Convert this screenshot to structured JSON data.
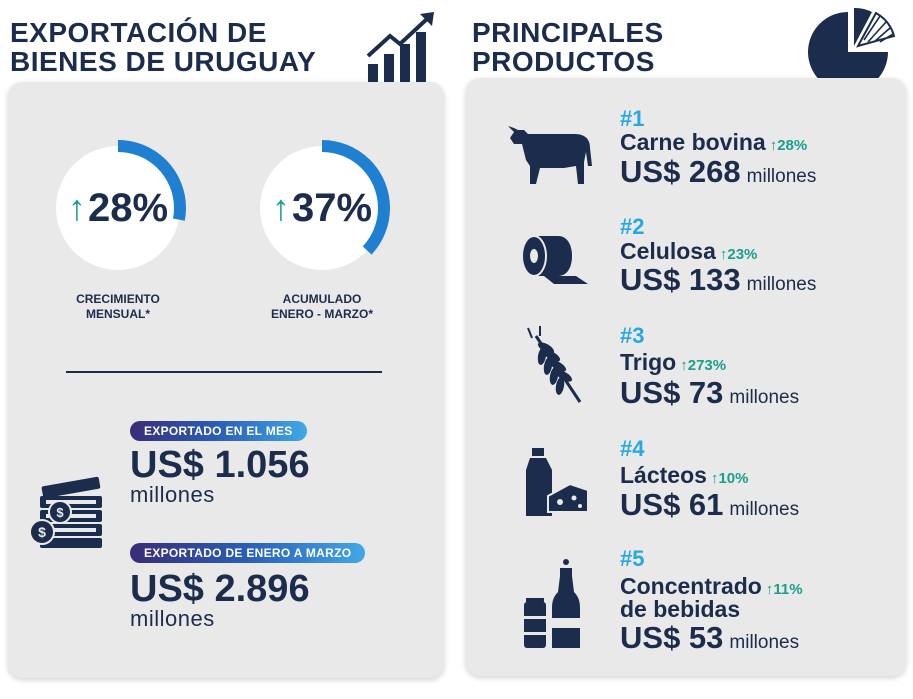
{
  "left": {
    "title_line1": "EXPORTACIÓN DE",
    "title_line2": "BIENES DE URUGUAY",
    "growth_monthly": {
      "arrow": "↑",
      "value": "28%",
      "fraction": 0.28,
      "caption_line1": "CRECIMIENTO",
      "caption_line2": "MENSUAL*"
    },
    "growth_accum": {
      "arrow": "↑",
      "value": "37%",
      "fraction": 0.37,
      "caption_line1": "ACUMULADO",
      "caption_line2": "ENERO - MARZO*"
    },
    "month": {
      "label": "EXPORTADO EN EL MES",
      "value": "US$ 1.056",
      "unit": "millones"
    },
    "q1": {
      "label": "EXPORTADO DE ENERO A MARZO",
      "value": "US$ 2.896",
      "unit": "millones"
    }
  },
  "right": {
    "title_line1": "PRINCIPALES",
    "title_line2": "PRODUCTOS",
    "products": [
      {
        "rank": "#1",
        "name": "Carne bovina",
        "change": "↑28%",
        "value": "US$ 268",
        "unit": "millones",
        "icon": "cow-icon"
      },
      {
        "rank": "#2",
        "name": "Celulosa",
        "change": "↑23%",
        "value": "US$ 133",
        "unit": "millones",
        "icon": "paper-roll-icon"
      },
      {
        "rank": "#3",
        "name": "Trigo",
        "change": "↑273%",
        "value": "US$ 73",
        "unit": "millones",
        "icon": "wheat-icon"
      },
      {
        "rank": "#4",
        "name": "Lácteos",
        "change": "↑10%",
        "value": "US$ 61",
        "unit": "millones",
        "icon": "dairy-icon"
      },
      {
        "rank": "#5",
        "name_line1": "Concentrado",
        "name_line2": "de bebidas",
        "change": "↑11%",
        "value": "US$ 53",
        "unit": "millones",
        "icon": "beverage-icon"
      }
    ]
  },
  "colors": {
    "navy": "#1c2c4c",
    "blue_ring": "#1f7fd0",
    "teal": "#1aa08a",
    "rank_blue": "#29a8e0",
    "panel": "#e9e9ea"
  }
}
